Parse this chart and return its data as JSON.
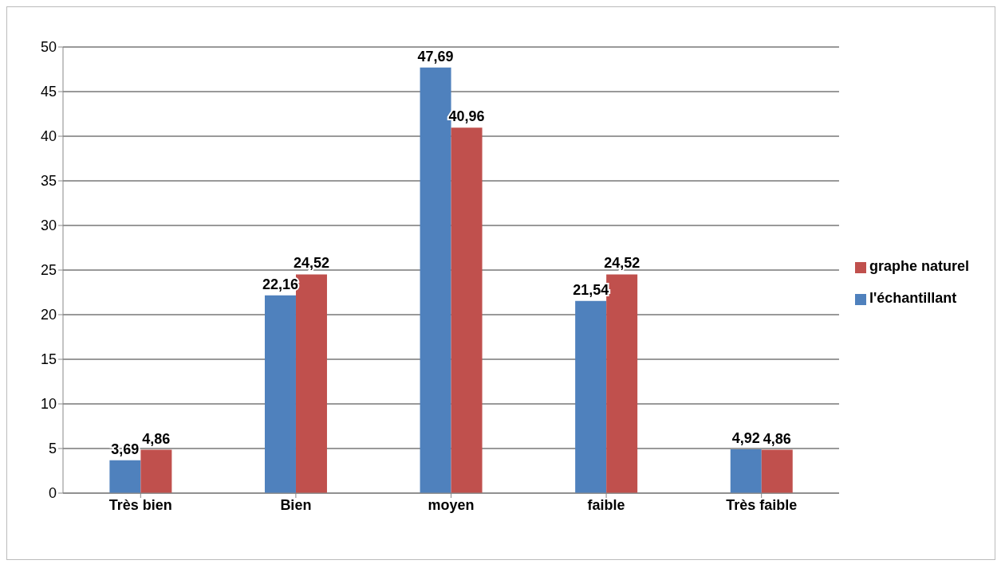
{
  "chart_data": {
    "type": "bar",
    "categories": [
      "Très bien",
      "Bien",
      "moyen",
      "faible",
      "Très faible"
    ],
    "series": [
      {
        "name": "l'échantillant",
        "color": "#4f81bd",
        "values": [
          3.69,
          22.16,
          47.69,
          21.54,
          4.92
        ],
        "value_labels": [
          "3,69",
          "22,16",
          "47,69",
          "21,54",
          "4,92"
        ]
      },
      {
        "name": "graphe naturel",
        "color": "#c0504d",
        "values": [
          4.86,
          24.52,
          40.96,
          24.52,
          4.86
        ],
        "value_labels": [
          "4,86",
          "24,52",
          "40,96",
          "24,52",
          "4,86"
        ]
      }
    ],
    "ylim": [
      0,
      50
    ],
    "yticks": [
      0,
      5,
      10,
      15,
      20,
      25,
      30,
      35,
      40,
      45,
      50
    ],
    "grid": "y",
    "legend": "right"
  }
}
